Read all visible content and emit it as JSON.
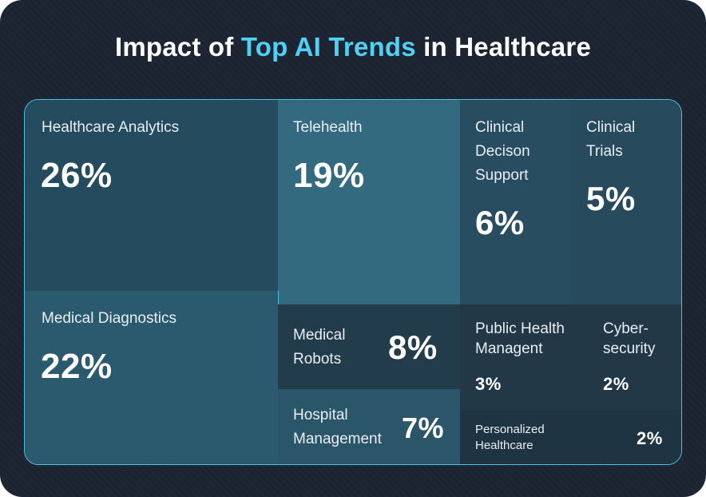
{
  "title": {
    "before": "Impact of ",
    "highlight": "Top AI Trends",
    "after": " in Healthcare"
  },
  "colors": {
    "background": "#1c2331",
    "highlight": "#4fd1f5",
    "border": "#4bc3e3"
  },
  "chart_data": {
    "type": "treemap",
    "title": "Impact of Top AI Trends in Healthcare",
    "items": [
      {
        "label": "Healthcare Analytics",
        "value": 26,
        "display": "26%"
      },
      {
        "label": "Telehealth",
        "value": 19,
        "display": "19%"
      },
      {
        "label": "Clinical\nDecison\nSupport",
        "value": 6,
        "display": "6%"
      },
      {
        "label": "Clinical\nTrials",
        "value": 5,
        "display": "5%"
      },
      {
        "label": "Medical Diagnostics",
        "value": 22,
        "display": "22%"
      },
      {
        "label": "Medical\nRobots",
        "value": 8,
        "display": "8%"
      },
      {
        "label": "Hospital\nManagement",
        "value": 7,
        "display": "7%"
      },
      {
        "label": "Public Health\nManagent",
        "value": 3,
        "display": "3%"
      },
      {
        "label": "Cyber-\nsecurity",
        "value": 2,
        "display": "2%"
      },
      {
        "label": "Personalized\nHealthcare",
        "value": 2,
        "display": "2%"
      }
    ]
  }
}
